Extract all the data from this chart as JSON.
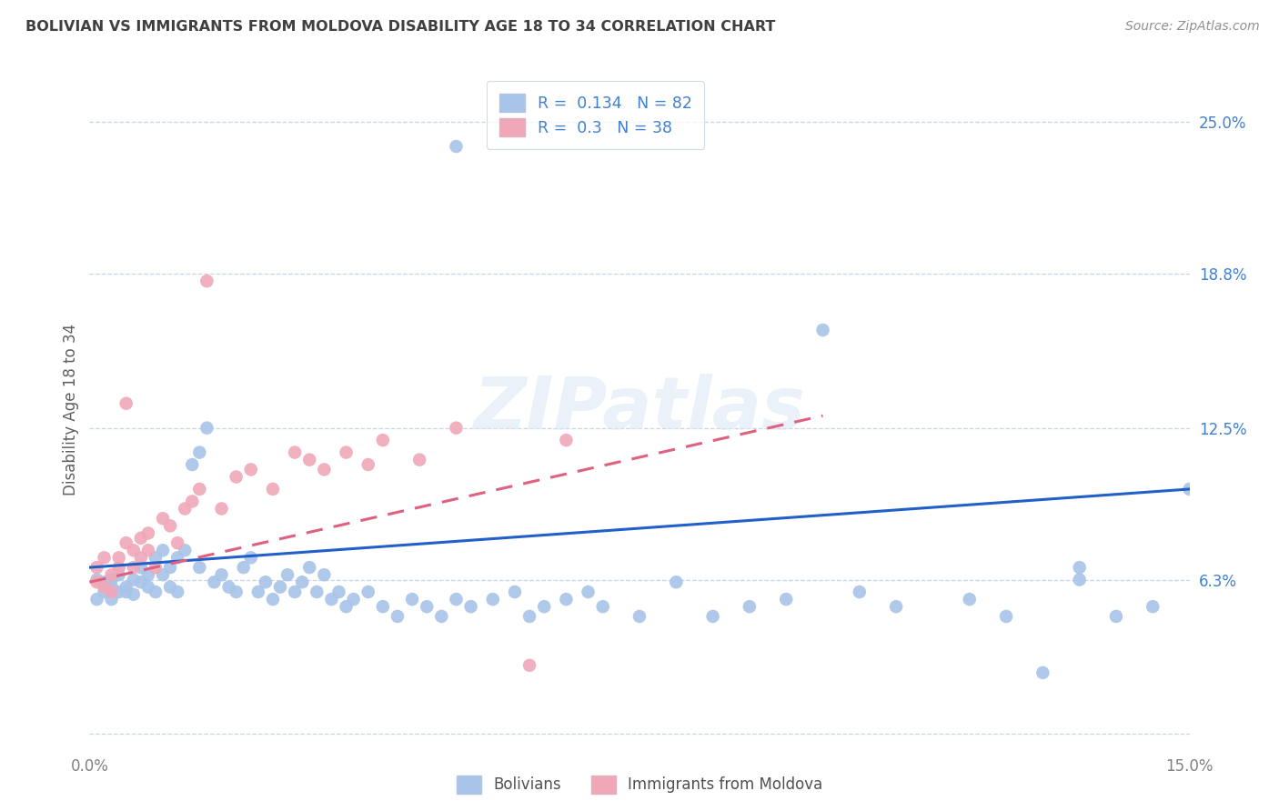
{
  "title": "BOLIVIAN VS IMMIGRANTS FROM MOLDOVA DISABILITY AGE 18 TO 34 CORRELATION CHART",
  "source": "Source: ZipAtlas.com",
  "ylabel": "Disability Age 18 to 34",
  "xlim": [
    0,
    0.15
  ],
  "ylim": [
    -0.005,
    0.27
  ],
  "xticks": [
    0.0,
    0.15
  ],
  "xticklabels": [
    "0.0%",
    "15.0%"
  ],
  "ytick_right_vals": [
    0.063,
    0.125,
    0.188,
    0.25
  ],
  "ytick_right_labels": [
    "6.3%",
    "12.5%",
    "18.8%",
    "25.0%"
  ],
  "legend_blue_label": "Bolivians",
  "legend_pink_label": "Immigrants from Moldova",
  "R_blue": 0.134,
  "N_blue": 82,
  "R_pink": 0.3,
  "N_pink": 38,
  "blue_color": "#a8c4e8",
  "pink_color": "#f0a8b8",
  "blue_line_color": "#2060c8",
  "pink_line_color": "#e06080",
  "background_color": "#ffffff",
  "grid_color": "#c8d4e8",
  "title_color": "#404040",
  "axis_label_color": "#808080",
  "right_tick_color": "#4080d0",
  "blue_x": [
    0.001,
    0.001,
    0.002,
    0.002,
    0.003,
    0.003,
    0.003,
    0.004,
    0.004,
    0.005,
    0.005,
    0.006,
    0.006,
    0.007,
    0.007,
    0.008,
    0.008,
    0.009,
    0.009,
    0.01,
    0.01,
    0.011,
    0.011,
    0.012,
    0.012,
    0.013,
    0.014,
    0.015,
    0.015,
    0.016,
    0.017,
    0.018,
    0.019,
    0.02,
    0.021,
    0.022,
    0.023,
    0.024,
    0.025,
    0.026,
    0.027,
    0.028,
    0.029,
    0.03,
    0.031,
    0.032,
    0.033,
    0.034,
    0.035,
    0.036,
    0.038,
    0.04,
    0.042,
    0.044,
    0.046,
    0.048,
    0.05,
    0.052,
    0.055,
    0.058,
    0.06,
    0.062,
    0.065,
    0.068,
    0.07,
    0.075,
    0.08,
    0.085,
    0.09,
    0.095,
    0.1,
    0.105,
    0.11,
    0.12,
    0.125,
    0.13,
    0.135,
    0.14,
    0.145,
    0.15,
    0.135,
    0.05
  ],
  "blue_y": [
    0.063,
    0.055,
    0.058,
    0.062,
    0.06,
    0.055,
    0.063,
    0.058,
    0.065,
    0.06,
    0.058,
    0.063,
    0.057,
    0.062,
    0.068,
    0.065,
    0.06,
    0.058,
    0.072,
    0.065,
    0.075,
    0.06,
    0.068,
    0.072,
    0.058,
    0.075,
    0.11,
    0.068,
    0.115,
    0.125,
    0.062,
    0.065,
    0.06,
    0.058,
    0.068,
    0.072,
    0.058,
    0.062,
    0.055,
    0.06,
    0.065,
    0.058,
    0.062,
    0.068,
    0.058,
    0.065,
    0.055,
    0.058,
    0.052,
    0.055,
    0.058,
    0.052,
    0.048,
    0.055,
    0.052,
    0.048,
    0.055,
    0.052,
    0.055,
    0.058,
    0.048,
    0.052,
    0.055,
    0.058,
    0.052,
    0.048,
    0.062,
    0.048,
    0.052,
    0.055,
    0.165,
    0.058,
    0.052,
    0.055,
    0.048,
    0.025,
    0.068,
    0.048,
    0.052,
    0.1,
    0.063,
    0.24
  ],
  "pink_x": [
    0.001,
    0.001,
    0.002,
    0.002,
    0.003,
    0.003,
    0.004,
    0.004,
    0.005,
    0.005,
    0.006,
    0.006,
    0.007,
    0.007,
    0.008,
    0.008,
    0.009,
    0.01,
    0.011,
    0.012,
    0.013,
    0.014,
    0.015,
    0.016,
    0.018,
    0.02,
    0.022,
    0.025,
    0.028,
    0.03,
    0.032,
    0.035,
    0.038,
    0.04,
    0.045,
    0.05,
    0.06,
    0.065
  ],
  "pink_y": [
    0.062,
    0.068,
    0.06,
    0.072,
    0.065,
    0.058,
    0.072,
    0.068,
    0.078,
    0.135,
    0.075,
    0.068,
    0.072,
    0.08,
    0.075,
    0.082,
    0.068,
    0.088,
    0.085,
    0.078,
    0.092,
    0.095,
    0.1,
    0.185,
    0.092,
    0.105,
    0.108,
    0.1,
    0.115,
    0.112,
    0.108,
    0.115,
    0.11,
    0.12,
    0.112,
    0.125,
    0.028,
    0.12
  ],
  "blue_trend_x": [
    0.0,
    0.15
  ],
  "blue_trend_y": [
    0.068,
    0.1
  ],
  "pink_trend_x": [
    0.0,
    0.1
  ],
  "pink_trend_y": [
    0.062,
    0.13
  ]
}
